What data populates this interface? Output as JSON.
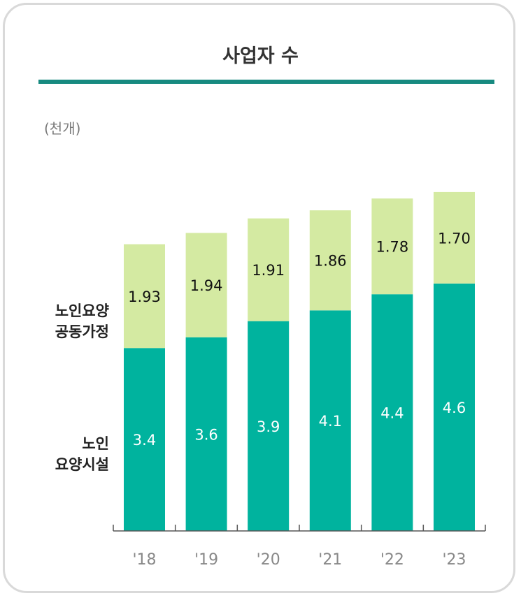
{
  "title": "사업자 수",
  "unit": "(천개)",
  "legend": {
    "top_series": [
      "노인요양",
      "공동가정"
    ],
    "bottom_series": [
      "노인",
      "요양시설"
    ]
  },
  "colors": {
    "accent_rule": "#178a80",
    "bottom_series": "#00b39e",
    "top_series": "#d4eaa2",
    "axis": "#555555",
    "tick_label": "#888888"
  },
  "chart_data": {
    "type": "bar",
    "stacked": true,
    "title": "사업자 수",
    "ylabel": "(천개)",
    "categories": [
      "'18",
      "'19",
      "'20",
      "'21",
      "'22",
      "'23"
    ],
    "series": [
      {
        "name": "노인 요양시설",
        "values": [
          3.4,
          3.6,
          3.9,
          4.1,
          4.4,
          4.6
        ]
      },
      {
        "name": "노인요양 공동가정",
        "values": [
          1.93,
          1.94,
          1.91,
          1.86,
          1.78,
          1.7
        ]
      }
    ],
    "value_labels": [
      [
        "3.4",
        "3.6",
        "3.9",
        "4.1",
        "4.4",
        "4.6"
      ],
      [
        "1.93",
        "1.94",
        "1.91",
        "1.86",
        "1.78",
        "1.70"
      ]
    ],
    "ylim": [
      0,
      6.4
    ],
    "grid": false,
    "legend_placement": "left"
  }
}
